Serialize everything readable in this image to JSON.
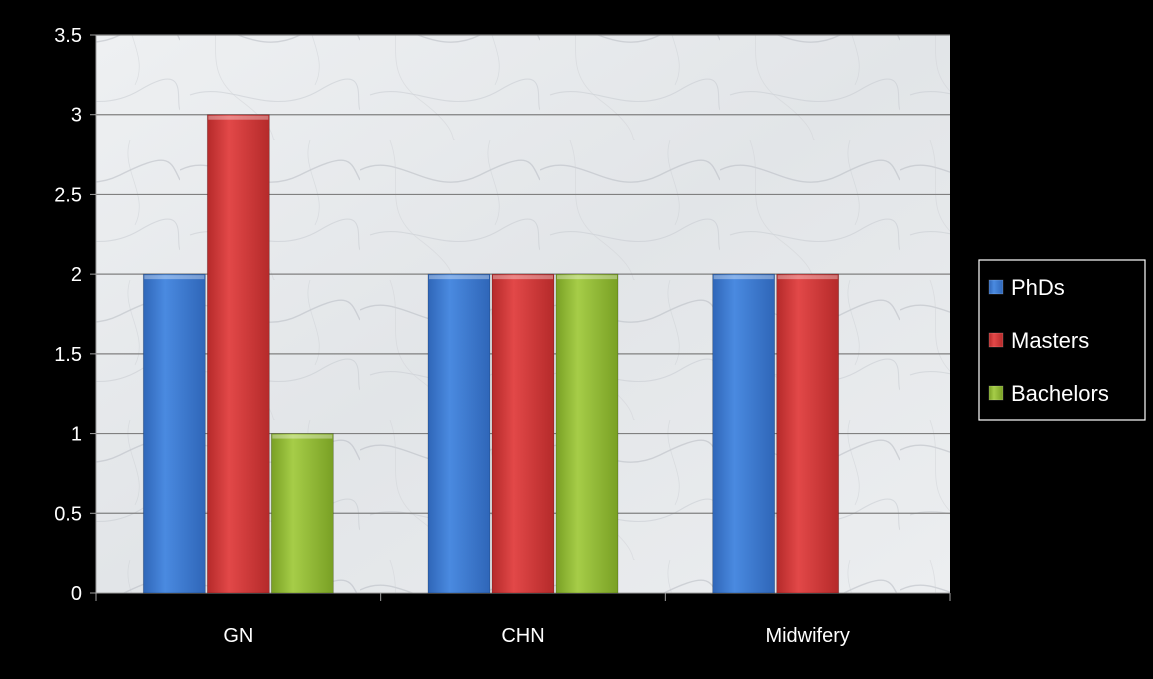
{
  "chart_data": {
    "type": "bar",
    "title": "",
    "xlabel": "",
    "ylabel": "",
    "categories": [
      "GN",
      "CHN",
      "Midwifery"
    ],
    "series": [
      {
        "name": "PhDs",
        "values": [
          2,
          2,
          2
        ],
        "color": "#3f7fd6"
      },
      {
        "name": "Masters",
        "values": [
          3,
          2,
          2
        ],
        "color": "#d83c3c"
      },
      {
        "name": "Bachelors",
        "values": [
          1,
          2,
          null
        ],
        "color": "#98c23a"
      }
    ],
    "ylim": [
      0,
      3.5
    ],
    "yticks": [
      "0",
      "0.5",
      "1",
      "1.5",
      "2",
      "2.5",
      "3",
      "3.5"
    ],
    "grid": true,
    "legend_position": "right",
    "background": "#000000",
    "plot_background": "marble texture"
  }
}
